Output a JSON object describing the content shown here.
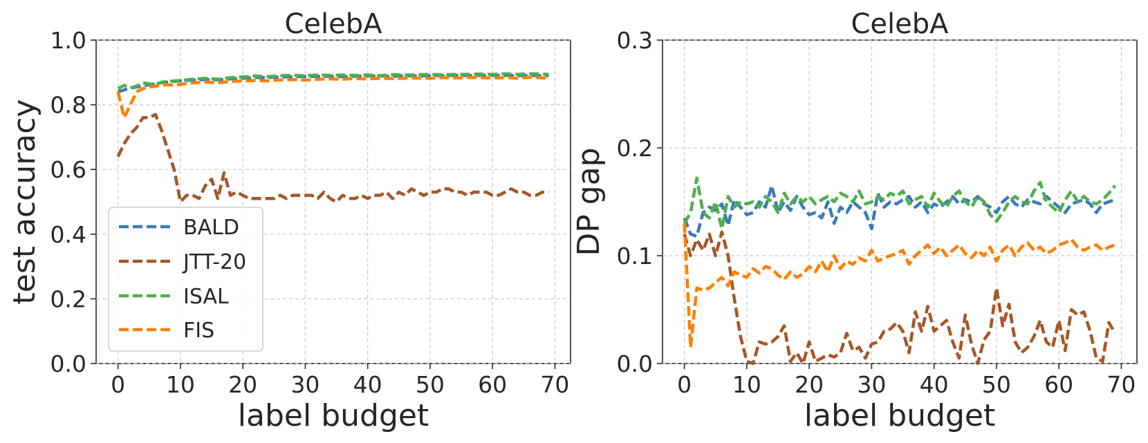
{
  "chart_data": [
    {
      "type": "line",
      "title": "CelebA",
      "xlabel": "label budget",
      "ylabel": "test accuracy",
      "xlim": [
        -3.5,
        72.5
      ],
      "ylim": [
        0.0,
        1.0
      ],
      "xticks": [
        0,
        10,
        20,
        30,
        40,
        50,
        60,
        70
      ],
      "xtick_labels": [
        "0",
        "10",
        "20",
        "30",
        "40",
        "50",
        "60",
        "70"
      ],
      "yticks": [
        0.0,
        0.2,
        0.4,
        0.6,
        0.8,
        1.0
      ],
      "ytick_labels": [
        "0.0",
        "0.2",
        "0.4",
        "0.6",
        "0.8",
        "1.0"
      ],
      "grid": true,
      "legend": "lower-left",
      "series": [
        {
          "name": "BALD",
          "color": "#3a7ab8",
          "x": [
            0,
            2,
            4,
            6,
            8,
            10,
            12,
            14,
            16,
            18,
            20,
            22,
            24,
            26,
            28,
            30,
            32,
            34,
            36,
            38,
            40,
            42,
            44,
            46,
            48,
            50,
            52,
            54,
            56,
            58,
            60,
            62,
            64,
            66,
            68,
            69
          ],
          "values": [
            0.84,
            0.852,
            0.858,
            0.866,
            0.87,
            0.874,
            0.876,
            0.878,
            0.877,
            0.88,
            0.882,
            0.884,
            0.884,
            0.886,
            0.887,
            0.887,
            0.888,
            0.888,
            0.887,
            0.888,
            0.889,
            0.889,
            0.888,
            0.89,
            0.889,
            0.89,
            0.89,
            0.891,
            0.89,
            0.891,
            0.891,
            0.891,
            0.89,
            0.891,
            0.89,
            0.89
          ]
        },
        {
          "name": "JTT-20",
          "color": "#a65628",
          "x": [
            0,
            1,
            2,
            3,
            4,
            5,
            6,
            7,
            8,
            9,
            10,
            11,
            12,
            13,
            14,
            15,
            16,
            17,
            18,
            19,
            20,
            21,
            22,
            23,
            24,
            25,
            26,
            27,
            28,
            29,
            30,
            31,
            32,
            33,
            34,
            35,
            36,
            37,
            38,
            39,
            40,
            41,
            42,
            43,
            44,
            45,
            46,
            47,
            48,
            49,
            50,
            51,
            52,
            53,
            54,
            55,
            56,
            57,
            58,
            59,
            60,
            61,
            62,
            63,
            64,
            65,
            66,
            67,
            68,
            69
          ],
          "values": [
            0.64,
            0.68,
            0.71,
            0.73,
            0.76,
            0.76,
            0.77,
            0.72,
            0.66,
            0.6,
            0.5,
            0.52,
            0.52,
            0.51,
            0.55,
            0.57,
            0.51,
            0.59,
            0.52,
            0.53,
            0.52,
            0.51,
            0.51,
            0.51,
            0.51,
            0.51,
            0.52,
            0.51,
            0.52,
            0.52,
            0.52,
            0.52,
            0.51,
            0.53,
            0.51,
            0.5,
            0.52,
            0.51,
            0.51,
            0.52,
            0.51,
            0.52,
            0.52,
            0.53,
            0.51,
            0.53,
            0.52,
            0.54,
            0.53,
            0.52,
            0.53,
            0.53,
            0.54,
            0.54,
            0.53,
            0.53,
            0.52,
            0.53,
            0.53,
            0.53,
            0.52,
            0.52,
            0.53,
            0.54,
            0.53,
            0.53,
            0.52,
            0.52,
            0.53,
            0.53
          ]
        },
        {
          "name": "ISAL",
          "color": "#4daf4a",
          "x": [
            0,
            1,
            2,
            3,
            4,
            5,
            6,
            7,
            8,
            9,
            10,
            12,
            14,
            16,
            18,
            20,
            22,
            24,
            26,
            28,
            30,
            32,
            34,
            36,
            38,
            40,
            42,
            44,
            46,
            48,
            50,
            52,
            54,
            56,
            58,
            60,
            62,
            64,
            66,
            68,
            69
          ],
          "values": [
            0.85,
            0.86,
            0.852,
            0.858,
            0.868,
            0.865,
            0.862,
            0.87,
            0.872,
            0.874,
            0.875,
            0.879,
            0.882,
            0.879,
            0.884,
            0.886,
            0.889,
            0.887,
            0.89,
            0.891,
            0.89,
            0.892,
            0.891,
            0.892,
            0.891,
            0.892,
            0.89,
            0.893,
            0.892,
            0.893,
            0.894,
            0.893,
            0.894,
            0.894,
            0.895,
            0.894,
            0.896,
            0.894,
            0.896,
            0.895,
            0.894
          ]
        },
        {
          "name": "FIS",
          "color": "#ff7f00",
          "x": [
            0,
            1,
            2,
            3,
            4,
            5,
            6,
            7,
            8,
            9,
            10,
            12,
            14,
            16,
            18,
            20,
            22,
            24,
            26,
            28,
            30,
            32,
            34,
            36,
            38,
            40,
            42,
            44,
            46,
            48,
            50,
            52,
            54,
            56,
            58,
            60,
            62,
            64,
            66,
            68,
            69
          ],
          "values": [
            0.84,
            0.76,
            0.8,
            0.84,
            0.85,
            0.855,
            0.858,
            0.86,
            0.862,
            0.86,
            0.863,
            0.868,
            0.87,
            0.868,
            0.872,
            0.874,
            0.875,
            0.874,
            0.877,
            0.878,
            0.876,
            0.879,
            0.88,
            0.879,
            0.881,
            0.88,
            0.882,
            0.881,
            0.882,
            0.883,
            0.882,
            0.884,
            0.883,
            0.884,
            0.884,
            0.883,
            0.884,
            0.882,
            0.885,
            0.883,
            0.883
          ]
        }
      ]
    },
    {
      "type": "line",
      "title": "CelebA",
      "xlabel": "label budget",
      "ylabel": "DP gap",
      "xlim": [
        -3.5,
        72.5
      ],
      "ylim": [
        0.0,
        0.3
      ],
      "xticks": [
        0,
        10,
        20,
        30,
        40,
        50,
        60,
        70
      ],
      "xtick_labels": [
        "0",
        "10",
        "20",
        "30",
        "40",
        "50",
        "60",
        "70"
      ],
      "yticks": [
        0.0,
        0.1,
        0.2,
        0.3
      ],
      "ytick_labels": [
        "0.0",
        "0.1",
        "0.2",
        "0.3"
      ],
      "grid": true,
      "legend": "none",
      "series": [
        {
          "name": "BALD",
          "color": "#3a7ab8",
          "x": [
            0,
            1,
            2,
            3,
            4,
            5,
            6,
            7,
            8,
            9,
            10,
            11,
            12,
            13,
            14,
            15,
            16,
            17,
            18,
            19,
            20,
            21,
            22,
            23,
            24,
            25,
            26,
            27,
            28,
            29,
            30,
            31,
            32,
            33,
            34,
            35,
            36,
            37,
            38,
            39,
            40,
            41,
            42,
            43,
            44,
            45,
            46,
            47,
            48,
            49,
            50,
            51,
            52,
            53,
            54,
            55,
            56,
            57,
            58,
            59,
            60,
            61,
            62,
            63,
            64,
            65,
            66,
            67,
            68,
            69
          ],
          "values": [
            0.135,
            0.12,
            0.118,
            0.14,
            0.145,
            0.142,
            0.148,
            0.128,
            0.152,
            0.145,
            0.138,
            0.14,
            0.15,
            0.145,
            0.165,
            0.14,
            0.15,
            0.142,
            0.155,
            0.145,
            0.138,
            0.14,
            0.135,
            0.15,
            0.13,
            0.145,
            0.14,
            0.15,
            0.145,
            0.14,
            0.125,
            0.158,
            0.145,
            0.15,
            0.148,
            0.152,
            0.155,
            0.145,
            0.15,
            0.14,
            0.148,
            0.145,
            0.15,
            0.155,
            0.148,
            0.152,
            0.15,
            0.155,
            0.148,
            0.145,
            0.14,
            0.15,
            0.155,
            0.148,
            0.145,
            0.152,
            0.15,
            0.148,
            0.155,
            0.15,
            0.145,
            0.14,
            0.148,
            0.15,
            0.152,
            0.148,
            0.14,
            0.148,
            0.15,
            0.152
          ]
        },
        {
          "name": "JTT-20",
          "color": "#a65628",
          "x": [
            0,
            1,
            2,
            3,
            4,
            5,
            6,
            7,
            8,
            9,
            10,
            11,
            12,
            13,
            14,
            15,
            16,
            17,
            18,
            19,
            20,
            21,
            22,
            23,
            24,
            25,
            26,
            27,
            28,
            29,
            30,
            31,
            32,
            33,
            34,
            35,
            36,
            37,
            38,
            39,
            40,
            41,
            42,
            43,
            44,
            45,
            46,
            47,
            48,
            49,
            50,
            51,
            52,
            53,
            54,
            55,
            56,
            57,
            58,
            59,
            60,
            61,
            62,
            63,
            64,
            65,
            66,
            67,
            68,
            69
          ],
          "values": [
            0.12,
            0.1,
            0.115,
            0.105,
            0.12,
            0.1,
            0.122,
            0.1,
            0.06,
            0.025,
            0.002,
            0.0,
            0.02,
            0.018,
            0.02,
            0.025,
            0.035,
            0.002,
            0.01,
            0.0,
            0.02,
            0.002,
            0.005,
            0.008,
            0.006,
            0.01,
            0.028,
            0.012,
            0.015,
            0.005,
            0.018,
            0.02,
            0.03,
            0.032,
            0.038,
            0.03,
            0.01,
            0.048,
            0.03,
            0.053,
            0.03,
            0.035,
            0.04,
            0.02,
            0.005,
            0.045,
            0.018,
            0.0,
            0.022,
            0.03,
            0.07,
            0.035,
            0.055,
            0.02,
            0.01,
            0.015,
            0.025,
            0.04,
            0.02,
            0.015,
            0.04,
            0.012,
            0.05,
            0.045,
            0.048,
            0.03,
            0.005,
            0.002,
            0.038,
            0.028
          ]
        },
        {
          "name": "ISAL",
          "color": "#4daf4a",
          "x": [
            0,
            1,
            2,
            3,
            4,
            5,
            6,
            7,
            8,
            9,
            10,
            11,
            12,
            13,
            14,
            15,
            16,
            17,
            18,
            19,
            20,
            21,
            22,
            23,
            24,
            25,
            26,
            27,
            28,
            29,
            30,
            31,
            32,
            33,
            34,
            35,
            36,
            37,
            38,
            39,
            40,
            41,
            42,
            43,
            44,
            45,
            46,
            47,
            48,
            49,
            50,
            51,
            52,
            53,
            54,
            55,
            56,
            57,
            58,
            59,
            60,
            61,
            62,
            63,
            64,
            65,
            66,
            67,
            68,
            69
          ],
          "values": [
            0.13,
            0.14,
            0.172,
            0.14,
            0.135,
            0.15,
            0.125,
            0.155,
            0.145,
            0.15,
            0.148,
            0.15,
            0.145,
            0.155,
            0.15,
            0.14,
            0.158,
            0.148,
            0.155,
            0.15,
            0.155,
            0.148,
            0.152,
            0.155,
            0.15,
            0.158,
            0.155,
            0.15,
            0.16,
            0.148,
            0.15,
            0.155,
            0.152,
            0.158,
            0.155,
            0.16,
            0.148,
            0.152,
            0.155,
            0.145,
            0.158,
            0.15,
            0.145,
            0.155,
            0.16,
            0.15,
            0.145,
            0.155,
            0.15,
            0.138,
            0.132,
            0.14,
            0.15,
            0.155,
            0.15,
            0.148,
            0.16,
            0.168,
            0.15,
            0.145,
            0.14,
            0.152,
            0.16,
            0.15,
            0.155,
            0.15,
            0.148,
            0.152,
            0.158,
            0.165
          ]
        },
        {
          "name": "FIS",
          "color": "#ff7f00",
          "x": [
            0,
            1,
            2,
            3,
            4,
            5,
            6,
            7,
            8,
            9,
            10,
            11,
            12,
            13,
            14,
            15,
            16,
            17,
            18,
            19,
            20,
            21,
            22,
            23,
            24,
            25,
            26,
            27,
            28,
            29,
            30,
            31,
            32,
            33,
            34,
            35,
            36,
            37,
            38,
            39,
            40,
            41,
            42,
            43,
            44,
            45,
            46,
            47,
            48,
            49,
            50,
            51,
            52,
            53,
            54,
            55,
            56,
            57,
            58,
            59,
            60,
            61,
            62,
            63,
            64,
            65,
            66,
            67,
            68,
            69
          ],
          "values": [
            0.13,
            0.015,
            0.07,
            0.068,
            0.07,
            0.075,
            0.08,
            0.072,
            0.085,
            0.082,
            0.08,
            0.088,
            0.084,
            0.09,
            0.088,
            0.082,
            0.078,
            0.085,
            0.08,
            0.083,
            0.09,
            0.085,
            0.095,
            0.085,
            0.1,
            0.088,
            0.095,
            0.092,
            0.098,
            0.095,
            0.105,
            0.095,
            0.098,
            0.1,
            0.102,
            0.105,
            0.092,
            0.1,
            0.105,
            0.11,
            0.102,
            0.108,
            0.1,
            0.105,
            0.11,
            0.102,
            0.098,
            0.105,
            0.1,
            0.108,
            0.095,
            0.105,
            0.11,
            0.1,
            0.108,
            0.112,
            0.105,
            0.108,
            0.102,
            0.105,
            0.11,
            0.112,
            0.115,
            0.108,
            0.105,
            0.108,
            0.11,
            0.105,
            0.108,
            0.11
          ]
        }
      ]
    }
  ]
}
